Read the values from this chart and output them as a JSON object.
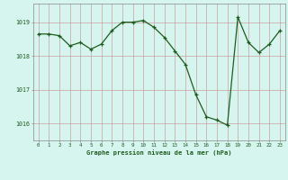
{
  "x": [
    0,
    1,
    2,
    3,
    4,
    5,
    6,
    7,
    8,
    9,
    10,
    11,
    12,
    13,
    14,
    15,
    16,
    17,
    18,
    19,
    20,
    21,
    22,
    23
  ],
  "y": [
    1018.65,
    1018.65,
    1018.6,
    1018.3,
    1018.4,
    1018.2,
    1018.35,
    1018.75,
    1019.0,
    1019.0,
    1019.05,
    1018.85,
    1018.55,
    1018.15,
    1017.75,
    1016.85,
    1016.2,
    1016.1,
    1015.95,
    1019.15,
    1018.4,
    1018.1,
    1018.35,
    1018.75
  ],
  "line_color": "#1e5c1e",
  "marker_color": "#1e5c1e",
  "bg_color": "#d6f5ef",
  "grid_color_v": "#c8a0a0",
  "grid_color_h": "#c8a0a0",
  "ylabel_ticks": [
    1016,
    1017,
    1018,
    1019
  ],
  "xlabel_label": "Graphe pression niveau de la mer (hPa)",
  "ylim": [
    1015.5,
    1019.55
  ],
  "xlim": [
    -0.5,
    23.5
  ],
  "tick_color": "#1e5c1e",
  "label_color": "#1e5c1e",
  "spine_color": "#888888"
}
